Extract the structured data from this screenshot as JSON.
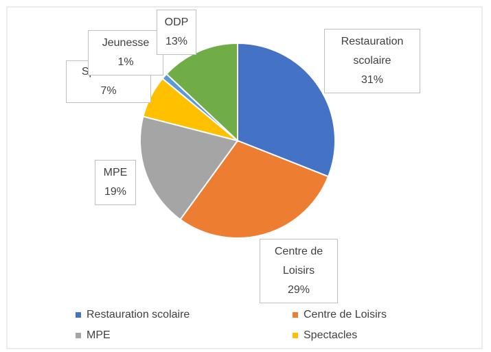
{
  "chart_data": {
    "type": "pie",
    "categories": [
      "Restauration scolaire",
      "Centre de Loisirs",
      "MPE",
      "Spectacles",
      "Jeunesse",
      "ODP"
    ],
    "values": [
      31,
      29,
      19,
      7,
      1,
      13
    ],
    "value_labels": [
      "31%",
      "29%",
      "19%",
      "7%",
      "1%",
      "13%"
    ],
    "colors": [
      "#4472c4",
      "#ed7d31",
      "#a5a5a5",
      "#ffc000",
      "#5b9bd5",
      "#70ad47"
    ],
    "legend": "bottom"
  }
}
